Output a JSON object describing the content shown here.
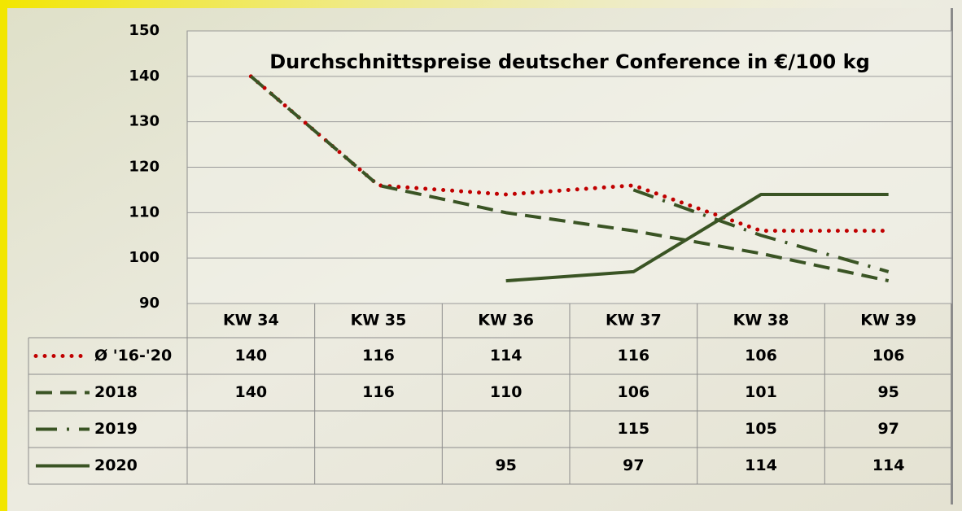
{
  "chart_data": {
    "type": "line",
    "title": "Durchschnittspreise deutscher Conference in €/100 kg",
    "categories": [
      "KW 34",
      "KW 35",
      "KW 36",
      "KW 37",
      "KW 38",
      "KW 39"
    ],
    "series": [
      {
        "name": "Ø '16-'20",
        "color": "#c00000",
        "dash": "dotted",
        "values": [
          140,
          116,
          114,
          116,
          106,
          106
        ]
      },
      {
        "name": "2018",
        "color": "#3a5424",
        "dash": "dashed",
        "values": [
          140,
          116,
          110,
          106,
          101,
          95
        ]
      },
      {
        "name": "2019",
        "color": "#3a5424",
        "dash": "dashdot",
        "values": [
          null,
          null,
          null,
          115,
          105,
          97
        ]
      },
      {
        "name": "2020",
        "color": "#3a5424",
        "dash": "solid",
        "values": [
          null,
          null,
          95,
          97,
          114,
          114
        ]
      }
    ],
    "ylim": [
      90,
      150
    ],
    "yticks": [
      90,
      100,
      110,
      120,
      130,
      140,
      150
    ],
    "grid": true,
    "data_table": true
  }
}
